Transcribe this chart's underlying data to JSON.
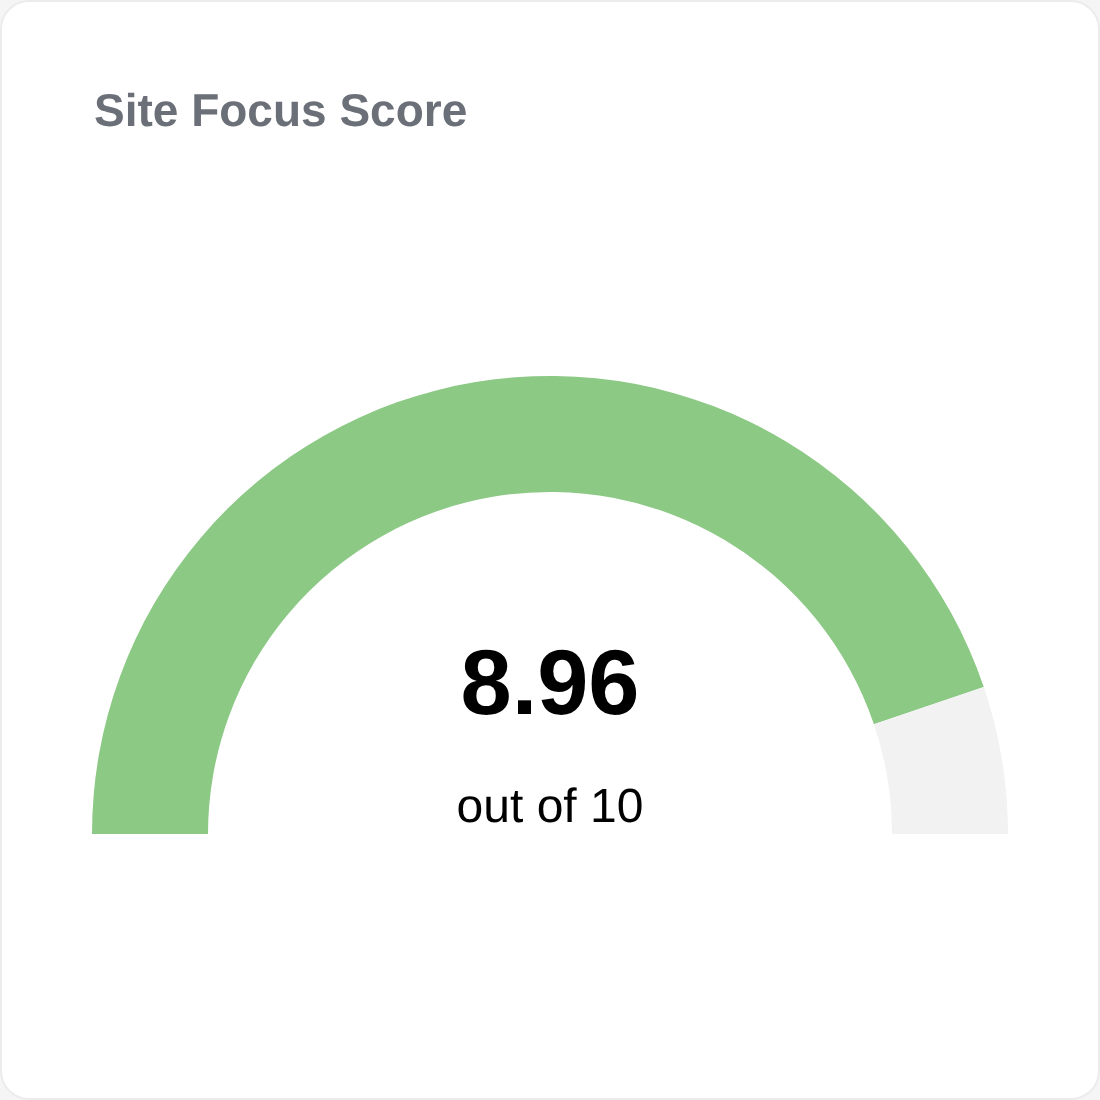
{
  "chart_data": {
    "type": "donut",
    "title": "Site Focus Score",
    "categories": [
      null,
      null
    ],
    "values": [
      89.6,
      10.4
    ],
    "colors": [
      "#8cc985",
      "#f2f2f2"
    ],
    "annotations": [
      "8.96",
      "out of 10"
    ]
  }
}
